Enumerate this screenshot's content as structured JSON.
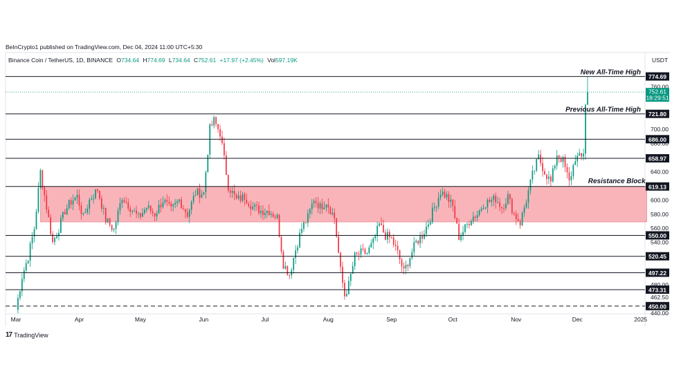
{
  "publish_line": "BeInCrypto1 published on TradingView.com, Dec 04, 2024 11:00 UTC+5:30",
  "symbol": {
    "name": "Binance Coin / TetherUS, 1D, BINANCE",
    "o_label": "O",
    "o_val": "734.64",
    "h_label": "H",
    "h_val": "774.69",
    "l_label": "L",
    "l_val": "734.64",
    "c_label": "C",
    "c_val": "752.61",
    "change": "+17.97 (+2.45%)",
    "vol_label": "Vol",
    "vol_val": "597.19K"
  },
  "currency": "USDT",
  "brand": "TradingView",
  "colors": {
    "up": "#089981",
    "down": "#f23645",
    "zone": "#f7a1a8",
    "price_tag": "#089981"
  },
  "chart_data": {
    "type": "candlestick",
    "y_range": [
      441,
      787
    ],
    "y_ticks": [
      {
        "value": 760.0,
        "label": "760.00"
      },
      {
        "value": 700.0,
        "label": "700.00"
      },
      {
        "value": 680.0,
        "label": "680.00"
      },
      {
        "value": 640.0,
        "label": "640.00"
      },
      {
        "value": 600.0,
        "label": "600.00"
      },
      {
        "value": 580.0,
        "label": "580.00"
      },
      {
        "value": 560.0,
        "label": "560.00"
      },
      {
        "value": 540.0,
        "label": "540.00"
      },
      {
        "value": 480.0,
        "label": "480.00"
      },
      {
        "value": 462.5,
        "label": "462.50"
      },
      {
        "value": 440.0,
        "label": "440.00"
      }
    ],
    "x_ticks": [
      {
        "day": 0,
        "label": "Mar"
      },
      {
        "day": 31,
        "label": "Apr"
      },
      {
        "day": 61,
        "label": "May"
      },
      {
        "day": 92,
        "label": "Jun"
      },
      {
        "day": 122,
        "label": "Jul"
      },
      {
        "day": 153,
        "label": "Aug"
      },
      {
        "day": 184,
        "label": "Sep"
      },
      {
        "day": 214,
        "label": "Oct"
      },
      {
        "day": 245,
        "label": "Nov"
      },
      {
        "day": 275,
        "label": "Dec"
      },
      {
        "day": 306,
        "label": "2025"
      }
    ],
    "levels": [
      {
        "value": 774.69,
        "label": "774.69",
        "dash": false,
        "annotation": "New All-Time High"
      },
      {
        "value": 721.8,
        "label": "721.80",
        "dash": false,
        "annotation": "Previous All-Time High"
      },
      {
        "value": 686.0,
        "label": "686.00",
        "dash": false,
        "annotation": ""
      },
      {
        "value": 658.97,
        "label": "658.97",
        "dash": false,
        "annotation": ""
      },
      {
        "value": 619.13,
        "label": "619.13",
        "dash": false,
        "annotation": ""
      },
      {
        "value": 550.0,
        "label": "550.00",
        "dash": false,
        "annotation": ""
      },
      {
        "value": 520.45,
        "label": "520.45",
        "dash": false,
        "annotation": ""
      },
      {
        "value": 497.22,
        "label": "497.22",
        "dash": false,
        "annotation": ""
      },
      {
        "value": 473.31,
        "label": "473.31",
        "dash": false,
        "annotation": ""
      },
      {
        "value": 450.0,
        "label": "450.00",
        "dash": true,
        "annotation": ""
      }
    ],
    "zone": {
      "top": 619.13,
      "bottom": 569,
      "day_start": 12,
      "day_end": 309,
      "label": "Resistance Block"
    },
    "last_price": {
      "value": 752.61,
      "label": "752.61",
      "countdown": "18:29:51"
    },
    "anchors": [
      [
        0,
        445
      ],
      [
        3,
        492
      ],
      [
        6,
        520
      ],
      [
        9,
        560
      ],
      [
        12,
        640
      ],
      [
        15,
        590
      ],
      [
        18,
        540
      ],
      [
        21,
        560
      ],
      [
        24,
        585
      ],
      [
        27,
        598
      ],
      [
        30,
        605
      ],
      [
        33,
        575
      ],
      [
        36,
        600
      ],
      [
        40,
        615
      ],
      [
        44,
        572
      ],
      [
        48,
        558
      ],
      [
        52,
        605
      ],
      [
        56,
        590
      ],
      [
        60,
        575
      ],
      [
        64,
        590
      ],
      [
        68,
        580
      ],
      [
        72,
        600
      ],
      [
        76,
        585
      ],
      [
        80,
        600
      ],
      [
        84,
        580
      ],
      [
        88,
        610
      ],
      [
        92,
        610
      ],
      [
        95,
        700
      ],
      [
        97,
        712
      ],
      [
        100,
        695
      ],
      [
        104,
        620
      ],
      [
        108,
        600
      ],
      [
        112,
        605
      ],
      [
        116,
        590
      ],
      [
        120,
        585
      ],
      [
        124,
        585
      ],
      [
        128,
        575
      ],
      [
        131,
        510
      ],
      [
        134,
        495
      ],
      [
        137,
        530
      ],
      [
        140,
        560
      ],
      [
        143,
        575
      ],
      [
        146,
        602
      ],
      [
        149,
        590
      ],
      [
        152,
        598
      ],
      [
        156,
        575
      ],
      [
        159,
        500
      ],
      [
        161,
        465
      ],
      [
        163,
        480
      ],
      [
        166,
        520
      ],
      [
        169,
        525
      ],
      [
        172,
        525
      ],
      [
        175,
        540
      ],
      [
        178,
        565
      ],
      [
        181,
        550
      ],
      [
        184,
        545
      ],
      [
        187,
        525
      ],
      [
        190,
        498
      ],
      [
        193,
        520
      ],
      [
        196,
        540
      ],
      [
        199,
        550
      ],
      [
        202,
        568
      ],
      [
        205,
        590
      ],
      [
        208,
        612
      ],
      [
        211,
        605
      ],
      [
        214,
        590
      ],
      [
        217,
        548
      ],
      [
        220,
        560
      ],
      [
        223,
        575
      ],
      [
        226,
        580
      ],
      [
        229,
        595
      ],
      [
        232,
        598
      ],
      [
        235,
        602
      ],
      [
        238,
        590
      ],
      [
        241,
        605
      ],
      [
        244,
        580
      ],
      [
        247,
        568
      ],
      [
        250,
        600
      ],
      [
        253,
        635
      ],
      [
        256,
        660
      ],
      [
        259,
        640
      ],
      [
        262,
        625
      ],
      [
        265,
        665
      ],
      [
        268,
        655
      ],
      [
        271,
        625
      ],
      [
        274,
        660
      ],
      [
        277,
        660
      ],
      [
        278,
        668
      ],
      [
        279,
        734.6
      ],
      [
        280,
        752.6
      ]
    ]
  }
}
